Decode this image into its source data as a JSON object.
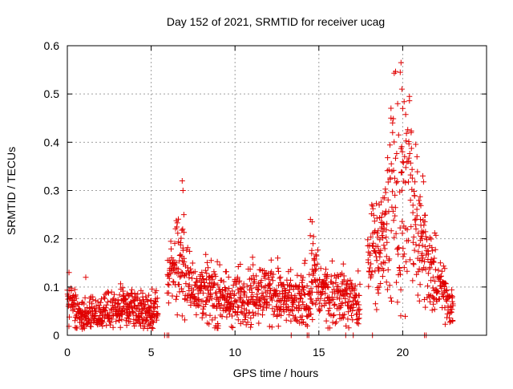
{
  "chart_data": {
    "type": "scatter",
    "title": "Day 152 of 2021, SRMTID for receiver ucag",
    "xlabel": "GPS time / hours",
    "ylabel": "SRMTID / TECUs",
    "xlim": [
      0,
      25
    ],
    "ylim": [
      0,
      0.6
    ],
    "x_ticks": [
      0,
      5,
      10,
      15,
      20
    ],
    "x_tick_labels": [
      "0",
      "5",
      "10",
      "15",
      "20"
    ],
    "y_ticks": [
      0,
      0.1,
      0.2,
      0.3,
      0.4,
      0.5,
      0.6
    ],
    "y_tick_labels": [
      "0",
      "0.1",
      "0.2",
      "0.3",
      "0.4",
      "0.5",
      "0.6"
    ],
    "grid": true,
    "marker": "plus",
    "series": [
      {
        "name": "SRMTID",
        "color": "#e00000",
        "profile": {
          "x": [
            0.0,
            0.3,
            0.6,
            1.0,
            1.5,
            2.0,
            2.5,
            3.0,
            3.5,
            4.0,
            4.5,
            5.0,
            5.3,
            6.0,
            6.3,
            6.6,
            6.9,
            7.2,
            7.6,
            8.0,
            8.5,
            9.0,
            9.5,
            10.0,
            10.5,
            11.0,
            11.5,
            12.0,
            12.5,
            13.0,
            13.5,
            14.0,
            14.4,
            14.7,
            15.0,
            15.4,
            15.8,
            16.2,
            16.6,
            17.0,
            17.4,
            18.2,
            18.6,
            19.0,
            19.3,
            19.6,
            19.9,
            20.2,
            20.5,
            20.8,
            21.1,
            21.4,
            21.6,
            21.9,
            22.2,
            22.5,
            22.8,
            23.0
          ],
          "y": [
            0.06,
            0.07,
            0.05,
            0.04,
            0.04,
            0.045,
            0.05,
            0.05,
            0.06,
            0.055,
            0.05,
            0.05,
            0.05,
            0.12,
            0.14,
            0.17,
            0.14,
            0.11,
            0.1,
            0.1,
            0.09,
            0.08,
            0.07,
            0.07,
            0.08,
            0.08,
            0.09,
            0.09,
            0.08,
            0.07,
            0.06,
            0.07,
            0.09,
            0.13,
            0.09,
            0.09,
            0.08,
            0.09,
            0.08,
            0.07,
            0.06,
            0.2,
            0.17,
            0.22,
            0.28,
            0.27,
            0.3,
            0.28,
            0.27,
            0.26,
            0.22,
            0.18,
            0.13,
            0.12,
            0.1,
            0.09,
            0.07,
            0.06
          ]
        },
        "spread": [
          0.02,
          0.02,
          0.02,
          0.02,
          0.02,
          0.02,
          0.02,
          0.02,
          0.02,
          0.02,
          0.02,
          0.02,
          0.02,
          0.03,
          0.04,
          0.06,
          0.04,
          0.03,
          0.03,
          0.03,
          0.03,
          0.03,
          0.03,
          0.03,
          0.03,
          0.03,
          0.03,
          0.03,
          0.03,
          0.03,
          0.03,
          0.03,
          0.04,
          0.05,
          0.03,
          0.03,
          0.03,
          0.03,
          0.03,
          0.03,
          0.03,
          0.05,
          0.05,
          0.07,
          0.1,
          0.12,
          0.14,
          0.12,
          0.1,
          0.08,
          0.06,
          0.05,
          0.04,
          0.04,
          0.03,
          0.03,
          0.02,
          0.02
        ],
        "gaps": [
          [
            5.4,
            5.95
          ],
          [
            17.45,
            17.9
          ]
        ],
        "peaks": [
          {
            "x": 6.85,
            "y": 0.32
          },
          {
            "x": 6.9,
            "y": 0.3
          },
          {
            "x": 6.95,
            "y": 0.25
          },
          {
            "x": 14.5,
            "y": 0.24
          },
          {
            "x": 14.6,
            "y": 0.235
          },
          {
            "x": 14.65,
            "y": 0.19
          },
          {
            "x": 12.55,
            "y": 0.16
          },
          {
            "x": 19.7,
            "y": 0.48
          },
          {
            "x": 19.85,
            "y": 0.545
          },
          {
            "x": 19.9,
            "y": 0.565
          },
          {
            "x": 19.95,
            "y": 0.51
          },
          {
            "x": 20.0,
            "y": 0.47
          },
          {
            "x": 19.4,
            "y": 0.42
          },
          {
            "x": 20.4,
            "y": 0.495
          },
          {
            "x": 20.5,
            "y": 0.42
          },
          {
            "x": 19.3,
            "y": 0.45
          },
          {
            "x": 18.6,
            "y": 0.27
          },
          {
            "x": 21.2,
            "y": 0.33
          },
          {
            "x": 1.1,
            "y": 0.12
          },
          {
            "x": 0.1,
            "y": 0.13
          }
        ],
        "baseline_markers_x": [
          5.8,
          5.95,
          6.05,
          13.35,
          14.3,
          14.4,
          16.6,
          17.05,
          18.2,
          21.3,
          21.4
        ]
      }
    ]
  }
}
